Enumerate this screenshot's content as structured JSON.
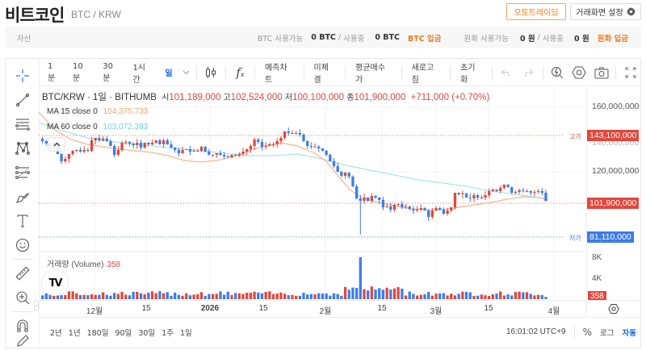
{
  "header": {
    "coin_name": "비트코인",
    "pair": "BTC / KRW",
    "auto_trading_label": "오토트레이딩",
    "screen_settings_label": "거래화면 설정"
  },
  "assets": {
    "label": "자산",
    "btc_available_label": "BTC 사용가능",
    "btc_available_value": "0 BTC",
    "sep": "/",
    "btc_in_use_label": "사용중",
    "btc_in_use_value": "0 BTC",
    "btc_deposit_label": "BTC 입금",
    "krw_available_label": "원화 사용가능",
    "krw_available_value": "0 원",
    "krw_in_use_label": "사용중",
    "krw_in_use_value": "0 원",
    "krw_deposit_label": "원화 입금"
  },
  "toolbar": {
    "intervals": [
      "1분",
      "10분",
      "30분",
      "1시간",
      "일"
    ],
    "active_interval": "일",
    "buttons": [
      "예측차트",
      "미체결",
      "평균매수가",
      "새로고침",
      "초기화"
    ]
  },
  "legend": {
    "symbol": "BTC/KRW · 1일 · BITHUMB",
    "open_label": "시",
    "open": "101,189,000",
    "high_label": "고",
    "high": "102,524,000",
    "low_label": "저",
    "low": "100,100,000",
    "close_label": "종",
    "close": "101,900,000",
    "change": "+711,000 (+0.70%)",
    "ma15_label": "MA 15 close 0",
    "ma15_value": "104,375,733",
    "ma60_label": "MA 60 close 0",
    "ma60_value": "103,072,383"
  },
  "price_axis": {
    "ticks": [
      "160,000,000",
      "140,000,000",
      "120,000,000"
    ],
    "high_tag_label": "고가",
    "high_tag": "143,100,000",
    "current_tag": "101,900,000",
    "low_tag_label": "저가",
    "low_tag": "81,110,000"
  },
  "volume": {
    "title": "거래량 (Volume)",
    "value": "358",
    "ticks": [
      "8K",
      "4K"
    ],
    "current_tag": "358"
  },
  "time_axis": [
    "12월",
    "15",
    "2026",
    "15",
    "2월",
    "15",
    "3월",
    "15",
    "4월"
  ],
  "bottom": {
    "ranges": [
      "2년",
      "1년",
      "180일",
      "90일",
      "30일",
      "1주",
      "1일"
    ],
    "clock": "16:01:02 UTC+9",
    "percent_label": "%",
    "log_label": "로그",
    "auto_label": "자동"
  },
  "colors": {
    "up": "#e2473c",
    "down": "#3d7bf0",
    "ma15": "#f7b58a",
    "ma60": "#a9e3ef",
    "accent": "#f07b1c",
    "active": "#1763f0"
  },
  "chart_data": {
    "type": "candlestick",
    "title": "BTC/KRW · 1일 · BITHUMB",
    "ylim": [
      75000000,
      170000000
    ],
    "y_ticks": [
      120000000,
      140000000,
      160000000
    ],
    "x_ticks": [
      "12월",
      "15",
      "2026",
      "15",
      "2월",
      "15",
      "3월",
      "15",
      "4월"
    ],
    "high_marker": 143100000,
    "low_marker": 81110000,
    "last_close": 101900000,
    "closes": [
      139000000,
      137500000,
      136000000,
      138000000,
      131000000,
      126500000,
      128000000,
      131000000,
      133000000,
      133500000,
      132500000,
      133500000,
      133000000,
      139500000,
      141000000,
      139500000,
      140500000,
      139000000,
      136000000,
      130500000,
      133500000,
      138000000,
      138500000,
      137500000,
      136500000,
      138000000,
      135000000,
      138000000,
      137000000,
      138000000,
      139500000,
      137000000,
      139500000,
      137000000,
      135000000,
      133500000,
      131500000,
      133500000,
      134000000,
      132500000,
      133000000,
      133000000,
      135500000,
      132500000,
      130500000,
      130500000,
      131500000,
      130500000,
      129500000,
      129000000,
      130500000,
      130000000,
      131000000,
      132500000,
      134000000,
      136000000,
      140000000,
      138500000,
      135500000,
      136000000,
      137000000,
      137000000,
      139000000,
      141000000,
      145000000,
      144000000,
      144000000,
      144000000,
      143000000,
      139000000,
      136000000,
      135500000,
      135500000,
      134500000,
      133000000,
      130500000,
      126500000,
      123500000,
      120000000,
      117500000,
      119500000,
      117000000,
      111000000,
      103500000,
      102000000,
      104000000,
      102000000,
      105000000,
      104000000,
      102500000,
      98000000,
      98500000,
      96500000,
      99500000,
      100000000,
      98000000,
      98500000,
      97000000,
      96000000,
      96500000,
      97500000,
      96000000,
      92000000,
      96000000,
      97500000,
      96500000,
      94000000,
      96000000,
      98000000,
      107000000,
      106000000,
      106500000,
      104000000,
      103500000,
      105500000,
      104000000,
      104000000,
      105500000,
      108000000,
      109000000,
      108000000,
      110000000,
      112000000,
      110500000,
      107000000,
      107500000,
      108500000,
      108000000,
      108000000,
      107000000,
      107500000,
      108000000,
      107000000,
      101900000
    ],
    "volume_ticks": [
      "4K",
      "8K"
    ],
    "last_volume": 358,
    "series": [
      {
        "name": "MA 15 close 0",
        "last": 104375733
      },
      {
        "name": "MA 60 close 0",
        "last": 103072383
      }
    ]
  }
}
